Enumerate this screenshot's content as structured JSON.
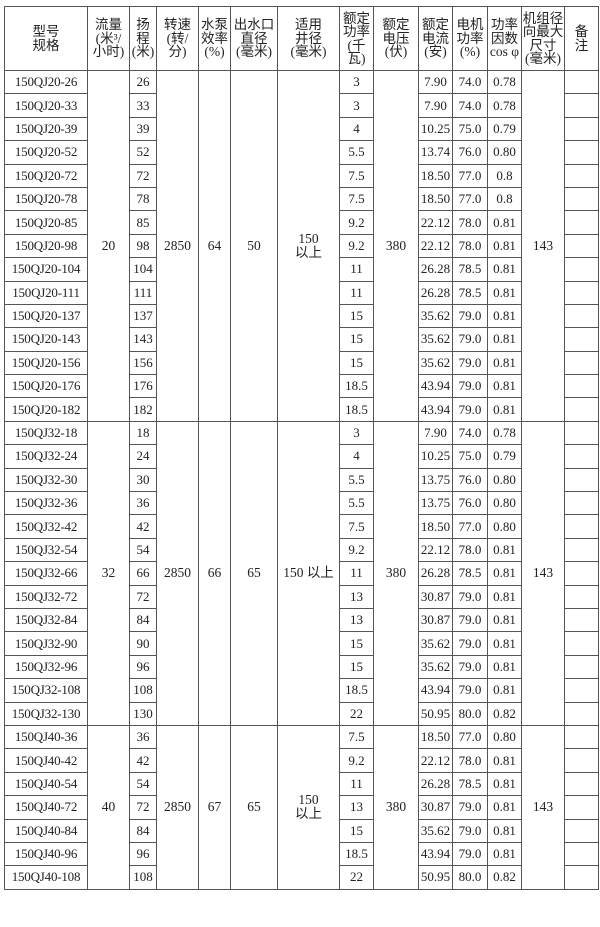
{
  "headers": [
    "型号\n规格",
    "流量\n(米³/\n小时)",
    "扬\n程\n(米)",
    "转速\n(转/\n分)",
    "水泵\n效率\n(%)",
    "出水口\n直径\n(毫米)",
    "适用\n井径\n(毫米)",
    "额定\n功率\n(千\n瓦)",
    "额定\n电压\n(伏)",
    "额定\n电流\n(安)",
    "电机\n功率\n(%)",
    "功率\n因数\ncos φ",
    "机组径\n向最大\n尺寸\n(毫米)",
    "备\n注"
  ],
  "sections": [
    {
      "flow": "20",
      "rpm": "2850",
      "pump_eff": "64",
      "outlet": "50",
      "well": "150\n以上",
      "voltage": "380",
      "max_size": "143",
      "rows": [
        [
          "150QJ20-26",
          "26",
          "3",
          "7.90",
          "74.0",
          "0.78"
        ],
        [
          "150QJ20-33",
          "33",
          "3",
          "7.90",
          "74.0",
          "0.78"
        ],
        [
          "150QJ20-39",
          "39",
          "4",
          "10.25",
          "75.0",
          "0.79"
        ],
        [
          "150QJ20-52",
          "52",
          "5.5",
          "13.74",
          "76.0",
          "0.80"
        ],
        [
          "150QJ20-72",
          "72",
          "7.5",
          "18.50",
          "77.0",
          "0.8"
        ],
        [
          "150QJ20-78",
          "78",
          "7.5",
          "18.50",
          "77.0",
          "0.8"
        ],
        [
          "150QJ20-85",
          "85",
          "9.2",
          "22.12",
          "78.0",
          "0.81"
        ],
        [
          "150QJ20-98",
          "98",
          "9.2",
          "22.12",
          "78.0",
          "0.81"
        ],
        [
          "150QJ20-104",
          "104",
          "11",
          "26.28",
          "78.5",
          "0.81"
        ],
        [
          "150QJ20-111",
          "111",
          "11",
          "26.28",
          "78.5",
          "0.81"
        ],
        [
          "150QJ20-137",
          "137",
          "15",
          "35.62",
          "79.0",
          "0.81"
        ],
        [
          "150QJ20-143",
          "143",
          "15",
          "35.62",
          "79.0",
          "0.81"
        ],
        [
          "150QJ20-156",
          "156",
          "15",
          "35.62",
          "79.0",
          "0.81"
        ],
        [
          "150QJ20-176",
          "176",
          "18.5",
          "43.94",
          "79.0",
          "0.81"
        ],
        [
          "150QJ20-182",
          "182",
          "18.5",
          "43.94",
          "79.0",
          "0.81"
        ]
      ]
    },
    {
      "flow": "32",
      "rpm": "2850",
      "pump_eff": "66",
      "outlet": "65",
      "well": "150 以上",
      "voltage": "380",
      "max_size": "143",
      "rows": [
        [
          "150QJ32-18",
          "18",
          "3",
          "7.90",
          "74.0",
          "0.78"
        ],
        [
          "150QJ32-24",
          "24",
          "4",
          "10.25",
          "75.0",
          "0.79"
        ],
        [
          "150QJ32-30",
          "30",
          "5.5",
          "13.75",
          "76.0",
          "0.80"
        ],
        [
          "150QJ32-36",
          "36",
          "5.5",
          "13.75",
          "76.0",
          "0.80"
        ],
        [
          "150QJ32-42",
          "42",
          "7.5",
          "18.50",
          "77.0",
          "0.80"
        ],
        [
          "150QJ32-54",
          "54",
          "9.2",
          "22.12",
          "78.0",
          "0.81"
        ],
        [
          "150QJ32-66",
          "66",
          "11",
          "26.28",
          "78.5",
          "0.81"
        ],
        [
          "150QJ32-72",
          "72",
          "13",
          "30.87",
          "79.0",
          "0.81"
        ],
        [
          "150QJ32-84",
          "84",
          "13",
          "30.87",
          "79.0",
          "0.81"
        ],
        [
          "150QJ32-90",
          "90",
          "15",
          "35.62",
          "79.0",
          "0.81"
        ],
        [
          "150QJ32-96",
          "96",
          "15",
          "35.62",
          "79.0",
          "0.81"
        ],
        [
          "150QJ32-108",
          "108",
          "18.5",
          "43.94",
          "79.0",
          "0.81"
        ],
        [
          "150QJ32-130",
          "130",
          "22",
          "50.95",
          "80.0",
          "0.82"
        ]
      ]
    },
    {
      "flow": "40",
      "rpm": "2850",
      "pump_eff": "67",
      "outlet": "65",
      "well": "150\n以上",
      "voltage": "380",
      "max_size": "143",
      "rows": [
        [
          "150QJ40-36",
          "36",
          "7.5",
          "18.50",
          "77.0",
          "0.80"
        ],
        [
          "150QJ40-42",
          "42",
          "9.2",
          "22.12",
          "78.0",
          "0.81"
        ],
        [
          "150QJ40-54",
          "54",
          "11",
          "26.28",
          "78.5",
          "0.81"
        ],
        [
          "150QJ40-72",
          "72",
          "13",
          "30.87",
          "79.0",
          "0.81"
        ],
        [
          "150QJ40-84",
          "84",
          "15",
          "35.62",
          "79.0",
          "0.81"
        ],
        [
          "150QJ40-96",
          "96",
          "18.5",
          "43.94",
          "79.0",
          "0.81"
        ],
        [
          "150QJ40-108",
          "108",
          "22",
          "50.95",
          "80.0",
          "0.82"
        ]
      ]
    }
  ]
}
